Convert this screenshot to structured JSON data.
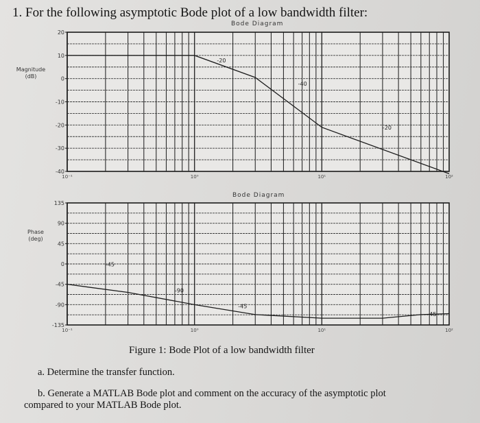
{
  "question_title": "1. For the following asymptotic Bode plot of a low bandwidth filter:",
  "caption": "Figure 1: Bode Plot of a low bandwidth filter",
  "part_a": "a. Determine the transfer function.",
  "part_b_line1": "b. Generate a MATLAB Bode plot and comment on the accuracy of the asymptotic plot",
  "part_b_line2": "compared to your MATLAB Bode plot.",
  "chart_data": [
    {
      "type": "line",
      "title": "Bode Diagram",
      "ylabel": "Magnitude\n(dB)",
      "xscale": "log",
      "xlim": [
        0.1,
        100
      ],
      "ylim": [
        -40,
        20
      ],
      "yticks": [
        20,
        10,
        0,
        -10,
        -20,
        -30,
        -40
      ],
      "xticks": [
        0.1,
        1,
        10,
        100
      ],
      "xtick_labels": [
        "10⁻¹",
        "10⁰",
        "10¹",
        "10²"
      ],
      "grid": true,
      "series": [
        {
          "x": [
            0.1,
            1,
            3,
            10,
            100
          ],
          "y": [
            10,
            10,
            0.5,
            -21,
            -41
          ]
        }
      ],
      "annotations": [
        {
          "text": "-20",
          "x": 1.5,
          "y": 7
        },
        {
          "text": "-40",
          "x": 6.5,
          "y": -3
        },
        {
          "text": "-20",
          "x": 30,
          "y": -22
        }
      ]
    },
    {
      "type": "line",
      "title": "Bode Diagram",
      "ylabel": "Phase\n(deg)",
      "xscale": "log",
      "xlim": [
        0.1,
        100
      ],
      "ylim": [
        -135,
        135
      ],
      "yticks": [
        135,
        90,
        45,
        0,
        -45,
        -90,
        -135
      ],
      "xticks": [
        0.1,
        1,
        10,
        100
      ],
      "xtick_labels": [
        "10⁻¹",
        "10⁰",
        "10¹",
        "10²"
      ],
      "grid": true,
      "series": [
        {
          "x": [
            0.1,
            0.3,
            1,
            3,
            10,
            30,
            60,
            100
          ],
          "y": [
            -45,
            -63,
            -90,
            -112,
            -120,
            -120,
            -112,
            -110
          ]
        }
      ],
      "annotations": [
        {
          "text": "-45",
          "x": 0.2,
          "y": -5
        },
        {
          "text": "-90",
          "x": 0.7,
          "y": -63
        },
        {
          "text": "-45",
          "x": 2.2,
          "y": -98
        },
        {
          "text": "45",
          "x": 70,
          "y": -115
        }
      ]
    }
  ]
}
